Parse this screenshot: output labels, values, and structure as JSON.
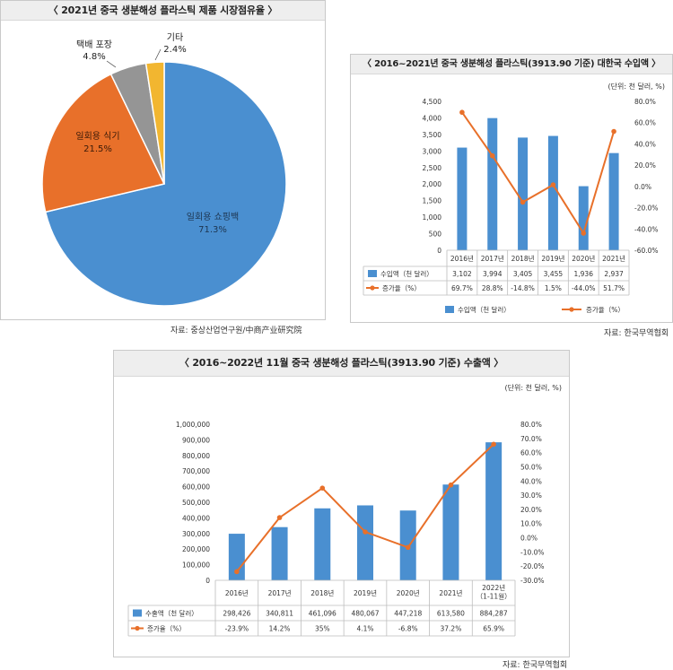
{
  "colors": {
    "blue": "#4a8fd0",
    "orange": "#e8702a",
    "gray": "#959595",
    "yellow": "#f2b630"
  },
  "pie": {
    "title": "〈 2021년 중국 생분해성 플라스틱 제품 시장점유율 〉",
    "source": "자료: 중상산업연구원/中商产业研究院"
  },
  "import_chart": {
    "title": "〈 2016~2021년 중국 생분해성 플라스틱(3913.90 기준) 대한국 수입액 〉",
    "unit": "(단위: 천 달러, %)",
    "source": "자료: 한국무역협회"
  },
  "export_chart": {
    "title": "〈 2016~2022년 11월 중국 생분해성 플라스틱(3913.90 기준) 수출액 〉",
    "unit": "(단위: 천 달러, %)",
    "source": "자료: 한국무역협회"
  },
  "chart_data": [
    {
      "type": "pie",
      "title": "2021년 중국 생분해성 플라스틱 제품 시장점유율",
      "slices": [
        {
          "label": "일회용 쇼핑백",
          "value_label": "71.3%",
          "value": 71.3,
          "color": "#4a8fd0"
        },
        {
          "label": "일회용 식기",
          "value_label": "21.5%",
          "value": 21.5,
          "color": "#e8702a"
        },
        {
          "label": "택배 포장",
          "value_label": "4.8%",
          "value": 4.8,
          "color": "#959595"
        },
        {
          "label": "기타",
          "value_label": "2.4%",
          "value": 2.4,
          "color": "#f2b630"
        }
      ]
    },
    {
      "type": "bar",
      "title": "2016~2021년 중국 생분해성 플라스틱(3913.90 기준) 대한국 수입액",
      "categories": [
        "2016년",
        "2017년",
        "2018년",
        "2019년",
        "2020년",
        "2021년"
      ],
      "y_ticks": [
        "4,500",
        "4,000",
        "3,500",
        "3,000",
        "2,500",
        "2,000",
        "1,500",
        "1,000",
        "500",
        "0"
      ],
      "y2_ticks": [
        "80.0%",
        "60.0%",
        "40.0%",
        "20.0%",
        "0.0%",
        "-20.0%",
        "-40.0%",
        "-60.0%"
      ],
      "ylim": [
        0,
        4500
      ],
      "y2lim": [
        -60,
        80
      ],
      "series": [
        {
          "name": "수입액（천 달러）",
          "kind": "bar",
          "axis": "left",
          "color": "#4a8fd0",
          "values": [
            3102,
            3994,
            3405,
            3455,
            1936,
            2937
          ],
          "labels": [
            "3,102",
            "3,994",
            "3,405",
            "3,455",
            "1,936",
            "2,937"
          ]
        },
        {
          "name": "증가율（%）",
          "kind": "line",
          "axis": "right",
          "color": "#e8702a",
          "values": [
            69.7,
            28.8,
            -14.8,
            1.5,
            -44.0,
            51.7
          ],
          "labels": [
            "69.7%",
            "28.8%",
            "-14.8%",
            "1.5%",
            "-44.0%",
            "51.7%"
          ]
        }
      ]
    },
    {
      "type": "bar",
      "title": "2016~2022년 11월 중국 생분해성 플라스틱(3913.90 기준) 수출액",
      "categories": [
        "2016년",
        "2017년",
        "2018년",
        "2019년",
        "2020년",
        "2021년",
        "2022년\n（1-11월）"
      ],
      "y_ticks": [
        "1,000,000",
        "900,000",
        "800,000",
        "700,000",
        "600,000",
        "500,000",
        "400,000",
        "300,000",
        "200,000",
        "100,000",
        "0"
      ],
      "y2_ticks": [
        "80.0%",
        "70.0%",
        "60.0%",
        "50.0%",
        "40.0%",
        "30.0%",
        "20.0%",
        "10.0%",
        "0.0%",
        "-10.0%",
        "-20.0%",
        "-30.0%"
      ],
      "ylim": [
        0,
        1000000
      ],
      "y2lim": [
        -30,
        80
      ],
      "series": [
        {
          "name": "수출액（천 달러）",
          "kind": "bar",
          "axis": "left",
          "color": "#4a8fd0",
          "values": [
            298426,
            340811,
            461096,
            480067,
            447218,
            613580,
            884287
          ],
          "labels": [
            "298,426",
            "340,811",
            "461,096",
            "480,067",
            "447,218",
            "613,580",
            "884,287"
          ]
        },
        {
          "name": "증가율（%）",
          "kind": "line",
          "axis": "right",
          "color": "#e8702a",
          "values": [
            -23.9,
            14.2,
            35,
            4.1,
            -6.8,
            37.2,
            65.9
          ],
          "labels": [
            "-23.9%",
            "14.2%",
            "35%",
            "4.1%",
            "-6.8%",
            "37.2%",
            "65.9%"
          ]
        }
      ]
    }
  ]
}
